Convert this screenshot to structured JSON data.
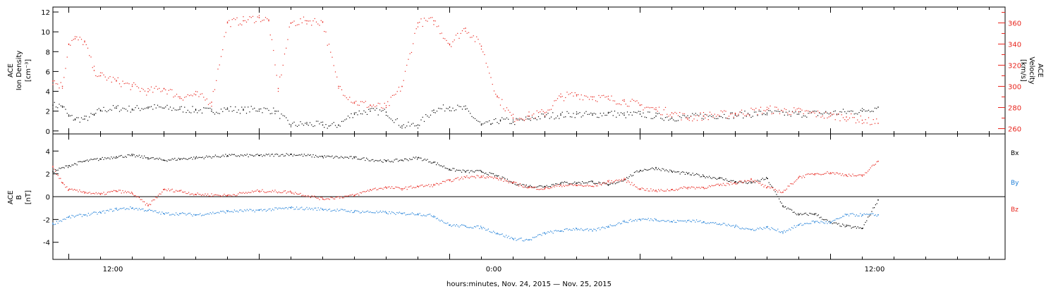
{
  "xlabel": "hours:minutes, Nov. 24, 2015 — Nov. 25, 2015",
  "x_tick_labels": [
    "12:00",
    "0:00",
    "12:00"
  ],
  "chart_data": [
    {
      "type": "scatter",
      "name": "plasma",
      "xlim": [
        5.5,
        35.5
      ],
      "ylim": [
        -0.3,
        12.5
      ],
      "ylim_right": [
        255,
        375
      ],
      "left_axis": {
        "label_lines": [
          "ACE",
          "Ion Density",
          "[cm⁻³]"
        ],
        "ticks": [
          0,
          2,
          4,
          6,
          8,
          10,
          12
        ]
      },
      "right_axis": {
        "label_lines": [
          "ACE",
          "Velocity",
          "[km/s]"
        ],
        "ticks": [
          260,
          280,
          300,
          320,
          340,
          360
        ],
        "color": "#e8241c"
      },
      "series": [
        {
          "color": "#000000",
          "axis": "left",
          "x": [
            5.5,
            5.8,
            6.0,
            6.2,
            6.5,
            6.8,
            7.0,
            7.5,
            8.0,
            8.5,
            9.0,
            9.5,
            10.0,
            10.5,
            11.0,
            11.5,
            12.0,
            12.5,
            13.0,
            13.5,
            14.0,
            14.2,
            14.5,
            15.0,
            15.5,
            16.0,
            16.5,
            17.0,
            17.5,
            18.0,
            18.5,
            19.0,
            19.3,
            19.6,
            20.0,
            20.5,
            21.0,
            21.5,
            22.0,
            22.5,
            23.0,
            23.5,
            24.0,
            24.5,
            25.0,
            26.0,
            27.0,
            28.0,
            29.0,
            30.0,
            31.0,
            31.5
          ],
          "y": [
            2.6,
            2.5,
            1.5,
            1.2,
            1.2,
            1.6,
            2.1,
            2.3,
            2.2,
            2.4,
            2.3,
            2.2,
            2.1,
            2.0,
            2.2,
            2.1,
            2.2,
            2.0,
            0.6,
            0.7,
            0.6,
            0.5,
            0.6,
            1.8,
            2.0,
            1.9,
            0.5,
            0.6,
            2.1,
            2.4,
            2.2,
            0.6,
            0.7,
            1.1,
            0.9,
            1.2,
            1.5,
            1.6,
            1.7,
            1.6,
            1.8,
            1.6,
            1.7,
            1.5,
            1.3,
            1.5,
            1.6,
            1.8,
            1.7,
            1.8,
            2.0,
            2.4
          ]
        },
        {
          "color": "#e8241c",
          "axis": "right",
          "x": [
            5.5,
            5.8,
            6.0,
            6.2,
            6.5,
            6.8,
            7.0,
            7.5,
            8.0,
            8.5,
            9.0,
            9.5,
            10.0,
            10.5,
            11.0,
            11.5,
            12.0,
            12.3,
            12.6,
            13.0,
            13.5,
            14.0,
            14.5,
            15.0,
            15.5,
            16.0,
            16.5,
            17.0,
            17.5,
            18.0,
            18.5,
            19.0,
            19.5,
            20.0,
            20.5,
            21.0,
            21.5,
            22.0,
            22.5,
            23.0,
            23.5,
            24.0,
            24.5,
            25.0,
            25.5,
            26.0,
            27.0,
            28.0,
            29.0,
            30.0,
            30.5,
            31.0,
            31.5
          ],
          "y": [
            305,
            300,
            340,
            345,
            342,
            315,
            310,
            305,
            300,
            295,
            298,
            290,
            292,
            285,
            360,
            362,
            365,
            362,
            298,
            360,
            362,
            361,
            300,
            285,
            282,
            280,
            300,
            360,
            362,
            340,
            355,
            338,
            290,
            270,
            272,
            275,
            290,
            292,
            290,
            288,
            286,
            282,
            278,
            275,
            270,
            272,
            274,
            278,
            276,
            272,
            271,
            268,
            265
          ]
        }
      ]
    },
    {
      "type": "scatter",
      "name": "imf",
      "xlim": [
        5.5,
        35.5
      ],
      "ylim": [
        -5.5,
        5.5
      ],
      "left_axis": {
        "label_lines": [
          "ACE",
          "B",
          "[nT]"
        ],
        "ticks": [
          -4,
          -2,
          0,
          2,
          4
        ]
      },
      "zero_line": true,
      "legend": [
        {
          "label": "Bx",
          "color": "#000000"
        },
        {
          "label": "By",
          "color": "#1f7fd8"
        },
        {
          "label": "Bz",
          "color": "#e8241c"
        }
      ],
      "series": [
        {
          "name": "Bx",
          "color": "#000000",
          "x": [
            5.5,
            6.0,
            6.5,
            7.0,
            7.5,
            8.0,
            8.5,
            9.0,
            9.5,
            10.0,
            11.0,
            12.0,
            13.0,
            14.0,
            15.0,
            16.0,
            16.5,
            17.0,
            17.5,
            18.0,
            18.5,
            19.0,
            19.5,
            20.0,
            20.5,
            21.0,
            21.5,
            22.0,
            22.5,
            23.0,
            23.5,
            24.0,
            24.5,
            25.0,
            25.5,
            26.0,
            26.5,
            27.0,
            27.5,
            28.0,
            28.5,
            29.0,
            29.5,
            30.0,
            30.5,
            31.0,
            31.5
          ],
          "y": [
            2.2,
            2.7,
            3.1,
            3.3,
            3.5,
            3.6,
            3.4,
            3.2,
            3.3,
            3.4,
            3.6,
            3.6,
            3.7,
            3.5,
            3.4,
            3.1,
            3.2,
            3.4,
            3.0,
            2.4,
            2.2,
            2.2,
            1.8,
            1.2,
            0.9,
            0.9,
            1.2,
            1.2,
            1.3,
            1.0,
            1.5,
            2.3,
            2.5,
            2.2,
            2.0,
            1.8,
            1.6,
            1.3,
            1.2,
            1.6,
            -0.8,
            -1.6,
            -1.5,
            -2.3,
            -2.6,
            -2.8,
            -0.3
          ]
        },
        {
          "name": "By",
          "color": "#1f7fd8",
          "x": [
            5.5,
            6.0,
            6.5,
            7.0,
            7.5,
            8.0,
            8.5,
            9.0,
            9.5,
            10.0,
            11.0,
            12.0,
            13.0,
            14.0,
            15.0,
            16.0,
            16.5,
            17.0,
            17.5,
            18.0,
            18.5,
            19.0,
            19.5,
            20.0,
            20.5,
            21.0,
            21.5,
            22.0,
            22.5,
            23.0,
            23.5,
            24.0,
            24.5,
            25.0,
            25.5,
            26.0,
            26.5,
            27.0,
            27.5,
            28.0,
            28.5,
            29.0,
            29.5,
            30.0,
            30.5,
            31.0,
            31.5
          ],
          "y": [
            -2.4,
            -1.8,
            -1.6,
            -1.4,
            -1.1,
            -1.0,
            -1.2,
            -1.5,
            -1.5,
            -1.6,
            -1.3,
            -1.2,
            -1.0,
            -1.1,
            -1.3,
            -1.4,
            -1.5,
            -1.5,
            -1.7,
            -2.5,
            -2.6,
            -2.7,
            -3.2,
            -3.7,
            -3.8,
            -3.2,
            -3.0,
            -2.8,
            -3.0,
            -2.6,
            -2.2,
            -2.0,
            -2.0,
            -2.2,
            -2.1,
            -2.2,
            -2.4,
            -2.6,
            -2.9,
            -2.7,
            -3.1,
            -2.5,
            -2.2,
            -2.3,
            -1.6,
            -1.6,
            -1.6
          ]
        },
        {
          "name": "Bz",
          "color": "#e8241c",
          "x": [
            5.5,
            5.8,
            6.0,
            6.5,
            7.0,
            7.5,
            8.0,
            8.5,
            9.0,
            9.5,
            10.0,
            11.0,
            12.0,
            13.0,
            14.0,
            15.0,
            15.5,
            16.0,
            16.5,
            17.0,
            17.5,
            18.0,
            18.5,
            19.0,
            19.5,
            20.0,
            20.5,
            21.0,
            21.5,
            22.0,
            22.5,
            23.0,
            23.5,
            24.0,
            24.5,
            25.0,
            25.5,
            26.0,
            26.5,
            27.0,
            27.5,
            28.0,
            28.5,
            29.0,
            29.5,
            30.0,
            30.5,
            31.0,
            31.5
          ],
          "y": [
            2.6,
            1.2,
            0.6,
            0.4,
            0.2,
            0.5,
            0.3,
            -0.8,
            0.6,
            0.5,
            0.2,
            0.1,
            0.5,
            0.4,
            -0.2,
            0.1,
            0.6,
            0.8,
            0.7,
            0.9,
            1.0,
            1.4,
            1.7,
            1.8,
            1.6,
            1.2,
            0.8,
            0.7,
            1.0,
            1.0,
            0.9,
            1.3,
            1.5,
            0.7,
            0.5,
            0.6,
            0.8,
            0.8,
            1.0,
            1.2,
            1.5,
            0.8,
            0.4,
            1.7,
            2.0,
            2.1,
            1.9,
            1.8,
            3.1
          ]
        }
      ]
    }
  ]
}
